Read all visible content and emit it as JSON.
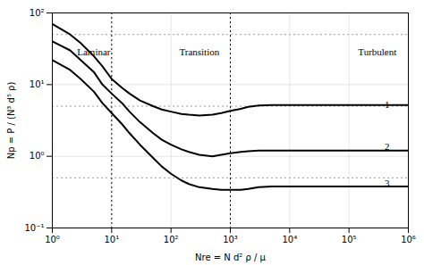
{
  "chart_data": {
    "type": "line",
    "log": true,
    "grid": true,
    "x_label": "Nre = N d² ρ / μ",
    "y_label": "Np = P / (N³ d⁵ ρ)",
    "xlim": [
      1,
      1000000
    ],
    "ylim": [
      0.1,
      100
    ],
    "xticks": [
      {
        "value": 1,
        "label": "10⁰"
      },
      {
        "value": 10,
        "label": "10¹"
      },
      {
        "value": 100,
        "label": "10²"
      },
      {
        "value": 1000,
        "label": "10³"
      },
      {
        "value": 10000,
        "label": "10⁴"
      },
      {
        "value": 100000,
        "label": "10⁵"
      },
      {
        "value": 1000000,
        "label": "10⁶"
      }
    ],
    "yticks": [
      {
        "value": 0.1,
        "label": "10⁻¹"
      },
      {
        "value": 1,
        "label": "10⁰"
      },
      {
        "value": 10,
        "label": "10¹"
      },
      {
        "value": 100,
        "label": "10²"
      }
    ],
    "x": [
      1,
      2,
      3,
      5,
      7,
      10,
      15,
      20,
      30,
      50,
      70,
      100,
      150,
      200,
      300,
      500,
      700,
      1000,
      1500,
      2000,
      3000,
      5000,
      7000,
      10000,
      20000,
      50000,
      100000,
      500000,
      1000000
    ],
    "series": [
      {
        "color": "#000000",
        "values": [
          70,
          50,
          38,
          25,
          18,
          12,
          9.0,
          7.5,
          6.0,
          5.0,
          4.5,
          4.2,
          3.9,
          3.8,
          3.7,
          3.8,
          4.0,
          4.3,
          4.6,
          4.9,
          5.1,
          5.2,
          5.2,
          5.2,
          5.2,
          5.2,
          5.2,
          5.2,
          5.2
        ]
      },
      {
        "color": "#000000",
        "values": [
          40,
          30,
          22,
          15,
          10,
          7.5,
          5.5,
          4.2,
          3.0,
          2.1,
          1.7,
          1.45,
          1.25,
          1.15,
          1.05,
          1.0,
          1.05,
          1.1,
          1.15,
          1.18,
          1.2,
          1.2,
          1.2,
          1.2,
          1.2,
          1.2,
          1.2,
          1.2,
          1.2
        ]
      },
      {
        "color": "#000000",
        "values": [
          22,
          16,
          12,
          8,
          5.5,
          4.0,
          2.8,
          2.1,
          1.45,
          0.95,
          0.72,
          0.57,
          0.46,
          0.41,
          0.37,
          0.35,
          0.34,
          0.34,
          0.34,
          0.35,
          0.37,
          0.38,
          0.38,
          0.38,
          0.38,
          0.38,
          0.38,
          0.38,
          0.38
        ]
      }
    ],
    "vlines": [
      10,
      1000
    ],
    "hlines": [
      0.5,
      5.0,
      50.0
    ],
    "annotations": [
      {
        "text": "Laminar",
        "x": 5.0,
        "y": 28
      },
      {
        "text": "Transition",
        "x": 300,
        "y": 28
      },
      {
        "text": "Turbulent",
        "x": 300000,
        "y": 28
      },
      {
        "text": "1",
        "x": 400000,
        "y": 5.2
      },
      {
        "text": "2",
        "x": 400000,
        "y": 1.35
      },
      {
        "text": "3",
        "x": 400000,
        "y": 0.42
      }
    ]
  }
}
